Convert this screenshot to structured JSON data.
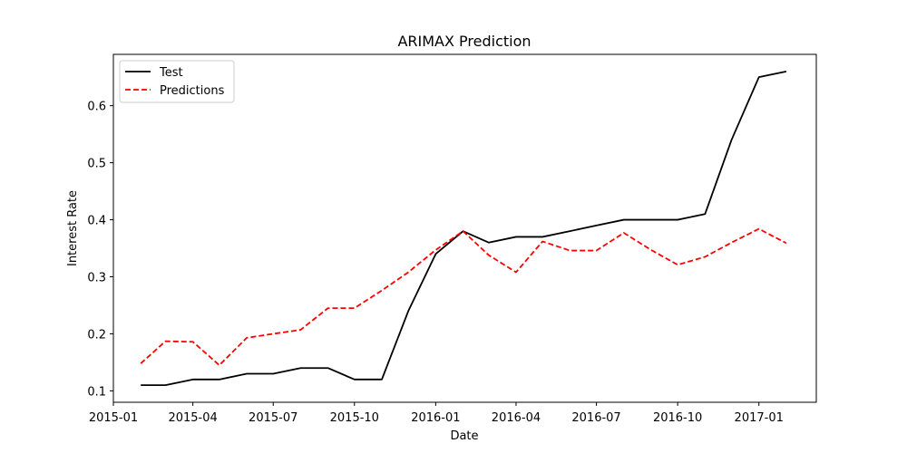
{
  "chart_data": {
    "type": "line",
    "title": "ARIMAX Prediction",
    "xlabel": "Date",
    "ylabel": "Interest Rate",
    "x_type": "date",
    "xlim": [
      "2015-01-01",
      "2017-03-07"
    ],
    "ylim": [
      0.08,
      0.69
    ],
    "x_ticks": [
      {
        "date": "2015-01-01",
        "label": "2015-01"
      },
      {
        "date": "2015-04-01",
        "label": "2015-04"
      },
      {
        "date": "2015-07-01",
        "label": "2015-07"
      },
      {
        "date": "2015-10-01",
        "label": "2015-10"
      },
      {
        "date": "2016-01-01",
        "label": "2016-01"
      },
      {
        "date": "2016-04-01",
        "label": "2016-04"
      },
      {
        "date": "2016-07-01",
        "label": "2016-07"
      },
      {
        "date": "2016-10-01",
        "label": "2016-10"
      },
      {
        "date": "2017-01-01",
        "label": "2017-01"
      }
    ],
    "y_ticks": [
      {
        "value": 0.1,
        "label": "0.1"
      },
      {
        "value": 0.2,
        "label": "0.2"
      },
      {
        "value": 0.3,
        "label": "0.3"
      },
      {
        "value": 0.4,
        "label": "0.4"
      },
      {
        "value": 0.5,
        "label": "0.5"
      },
      {
        "value": 0.6,
        "label": "0.6"
      }
    ],
    "grid": false,
    "legend_position": "upper-left",
    "x": [
      "2015-02-01",
      "2015-03-01",
      "2015-04-01",
      "2015-05-01",
      "2015-06-01",
      "2015-07-01",
      "2015-08-01",
      "2015-09-01",
      "2015-10-01",
      "2015-11-01",
      "2015-12-01",
      "2016-01-01",
      "2016-02-01",
      "2016-03-01",
      "2016-04-01",
      "2016-05-01",
      "2016-06-01",
      "2016-07-01",
      "2016-08-01",
      "2016-09-01",
      "2016-10-01",
      "2016-11-01",
      "2016-12-01",
      "2017-01-01",
      "2017-02-01"
    ],
    "series": [
      {
        "name": "Test",
        "color": "#000000",
        "style": "solid",
        "values": [
          0.11,
          0.11,
          0.12,
          0.12,
          0.13,
          0.13,
          0.14,
          0.14,
          0.12,
          0.12,
          0.24,
          0.34,
          0.38,
          0.36,
          0.37,
          0.37,
          0.38,
          0.39,
          0.4,
          0.4,
          0.4,
          0.41,
          0.54,
          0.65,
          0.66
        ]
      },
      {
        "name": "Predictions",
        "color": "#ff0000",
        "style": "dashed",
        "values": [
          0.148,
          0.187,
          0.186,
          0.145,
          0.193,
          0.2,
          0.207,
          0.245,
          0.245,
          0.276,
          0.308,
          0.347,
          0.38,
          0.338,
          0.308,
          0.362,
          0.346,
          0.346,
          0.377,
          0.347,
          0.321,
          0.335,
          0.36,
          0.384,
          0.359
        ]
      }
    ]
  }
}
